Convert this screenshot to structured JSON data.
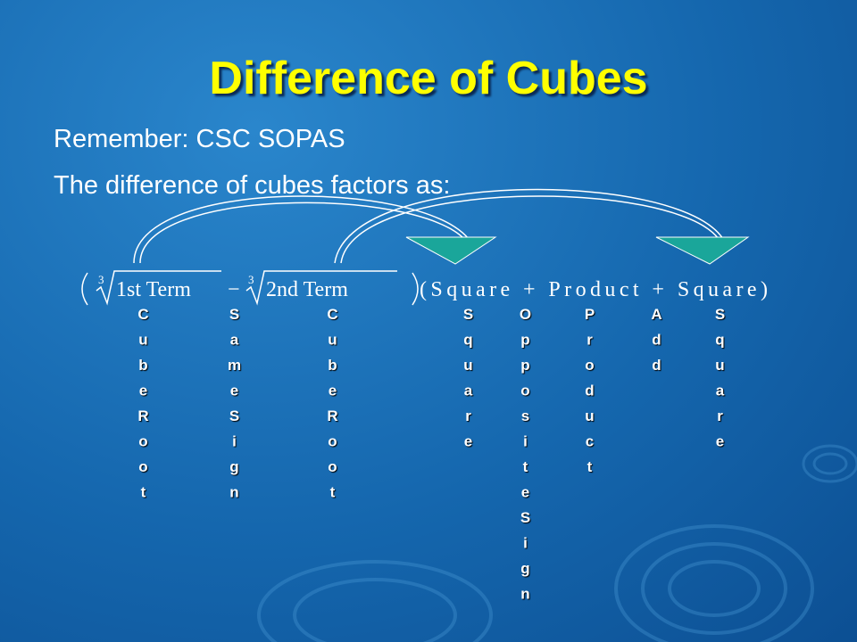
{
  "title": "Difference of Cubes",
  "lines": [
    "Remember: CSC SOPAS",
    "The difference of cubes factors as:"
  ],
  "formula": {
    "root_index": "3",
    "term1": "1st Term",
    "operator": "−",
    "term2": "2nd Term",
    "second_factor": "(Square + Product + Square)"
  },
  "columns": [
    "CubeRoot",
    "SameSign",
    "CubeRoot",
    "Square",
    "OppositeSign",
    "Product",
    "Add",
    "Square"
  ]
}
